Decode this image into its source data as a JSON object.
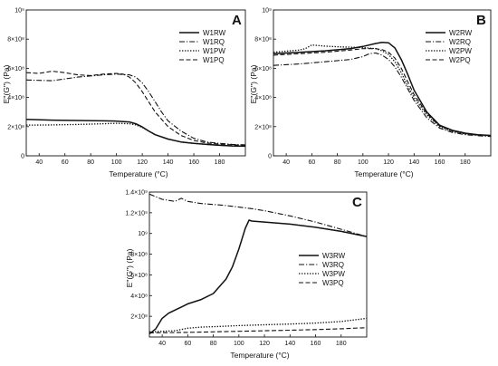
{
  "chart_data": [
    {
      "type": "line",
      "panel": "A",
      "xlabel": "Temperature (°C)",
      "ylabel": "E''(G'') (Pa)",
      "xlim": [
        30,
        200
      ],
      "ylim": [
        0,
        1000000000
      ],
      "xticks": [
        "40",
        "60",
        "80",
        "100",
        "120",
        "140",
        "160",
        "180"
      ],
      "yticks": [
        "0",
        "2×10⁸",
        "4×10⁸",
        "6×10⁸",
        "8×10⁸",
        "10⁹"
      ],
      "legend_position": "top-right",
      "series": [
        {
          "name": "W1RW",
          "style": "solid",
          "x": [
            30,
            50,
            70,
            90,
            100,
            110,
            115,
            120,
            125,
            130,
            140,
            150,
            160,
            170,
            180,
            190,
            200
          ],
          "y": [
            250000000,
            245000000,
            242000000,
            240000000,
            238000000,
            232000000,
            220000000,
            198000000,
            170000000,
            145000000,
            115000000,
            95000000,
            85000000,
            78000000,
            72000000,
            68000000,
            66000000
          ]
        },
        {
          "name": "W1RQ",
          "style": "dashdot",
          "x": [
            30,
            50,
            70,
            90,
            100,
            110,
            115,
            120,
            125,
            130,
            135,
            140,
            150,
            160,
            170,
            180,
            190,
            200
          ],
          "y": [
            520000000,
            515000000,
            540000000,
            555000000,
            560000000,
            555000000,
            540000000,
            500000000,
            440000000,
            370000000,
            300000000,
            240000000,
            170000000,
            120000000,
            95000000,
            85000000,
            78000000,
            75000000
          ]
        },
        {
          "name": "W1PW",
          "style": "dotted",
          "x": [
            30,
            50,
            70,
            90,
            100,
            110,
            115,
            120,
            125,
            130,
            140,
            150,
            160,
            170,
            180,
            190,
            200
          ],
          "y": [
            210000000,
            212000000,
            215000000,
            220000000,
            223000000,
            220000000,
            212000000,
            195000000,
            170000000,
            145000000,
            115000000,
            95000000,
            85000000,
            78000000,
            72000000,
            68000000,
            66000000
          ]
        },
        {
          "name": "W1PQ",
          "style": "dashed",
          "x": [
            30,
            40,
            50,
            60,
            70,
            80,
            90,
            100,
            105,
            110,
            115,
            120,
            125,
            130,
            140,
            150,
            160,
            170,
            180,
            190,
            200
          ],
          "y": [
            570000000,
            565000000,
            580000000,
            570000000,
            555000000,
            550000000,
            560000000,
            565000000,
            560000000,
            540000000,
            500000000,
            440000000,
            370000000,
            300000000,
            200000000,
            140000000,
            105000000,
            88000000,
            80000000,
            75000000,
            72000000
          ]
        }
      ]
    },
    {
      "type": "line",
      "panel": "B",
      "xlabel": "Temperature (°C)",
      "ylabel": "E''(G'') (Pa)",
      "xlim": [
        30,
        200
      ],
      "ylim": [
        0,
        1000000000
      ],
      "xticks": [
        "40",
        "60",
        "80",
        "100",
        "120",
        "140",
        "160",
        "180"
      ],
      "yticks": [
        "0",
        "2×10⁸",
        "4×10⁸",
        "6×10⁸",
        "8×10⁸",
        "10⁹"
      ],
      "legend_position": "top-right",
      "series": [
        {
          "name": "W2RW",
          "style": "solid",
          "x": [
            30,
            50,
            70,
            90,
            100,
            110,
            115,
            120,
            125,
            130,
            135,
            140,
            150,
            160,
            170,
            180,
            190,
            200
          ],
          "y": [
            700000000,
            710000000,
            720000000,
            735000000,
            750000000,
            770000000,
            778000000,
            775000000,
            740000000,
            660000000,
            560000000,
            450000000,
            300000000,
            210000000,
            175000000,
            155000000,
            145000000,
            140000000
          ]
        },
        {
          "name": "W2RQ",
          "style": "dashdot",
          "x": [
            30,
            50,
            70,
            90,
            100,
            105,
            110,
            115,
            120,
            125,
            130,
            135,
            140,
            150,
            160,
            170,
            180,
            190,
            200
          ],
          "y": [
            620000000,
            630000000,
            645000000,
            660000000,
            680000000,
            700000000,
            705000000,
            690000000,
            660000000,
            610000000,
            540000000,
            460000000,
            380000000,
            260000000,
            190000000,
            160000000,
            145000000,
            138000000,
            132000000
          ]
        },
        {
          "name": "W2PW",
          "style": "dotted",
          "x": [
            30,
            50,
            55,
            60,
            70,
            80,
            90,
            100,
            110,
            115,
            120,
            125,
            130,
            135,
            140,
            150,
            160,
            170,
            180,
            190,
            200
          ],
          "y": [
            710000000,
            725000000,
            735000000,
            760000000,
            752000000,
            748000000,
            745000000,
            742000000,
            735000000,
            720000000,
            695000000,
            645000000,
            570000000,
            480000000,
            400000000,
            280000000,
            200000000,
            168000000,
            150000000,
            142000000,
            138000000
          ]
        },
        {
          "name": "W2PQ",
          "style": "dashed",
          "x": [
            30,
            50,
            70,
            90,
            100,
            110,
            115,
            120,
            125,
            130,
            135,
            140,
            150,
            160,
            170,
            180,
            190,
            200
          ],
          "y": [
            690000000,
            700000000,
            710000000,
            725000000,
            735000000,
            735000000,
            728000000,
            710000000,
            670000000,
            600000000,
            510000000,
            420000000,
            290000000,
            205000000,
            170000000,
            152000000,
            144000000,
            140000000
          ]
        }
      ]
    },
    {
      "type": "line",
      "panel": "C",
      "xlabel": "Temperature (°C)",
      "ylabel": "E''(G'') (Pa)",
      "xlim": [
        30,
        200
      ],
      "ylim": [
        0,
        1400000000
      ],
      "xticks": [
        "40",
        "60",
        "80",
        "100",
        "120",
        "140",
        "160",
        "180"
      ],
      "yticks": [
        "2×10⁸",
        "4×10⁸",
        "6×10⁸",
        "8×10⁸",
        "10⁹",
        "1.2×10⁹",
        "1.4×10⁹"
      ],
      "legend_position": "right",
      "series": [
        {
          "name": "W3RW",
          "style": "solid",
          "x": [
            30,
            35,
            40,
            45,
            50,
            55,
            60,
            70,
            80,
            90,
            95,
            100,
            105,
            108,
            110,
            120,
            140,
            160,
            180,
            200
          ],
          "y": [
            30000000,
            80000000,
            180000000,
            230000000,
            260000000,
            290000000,
            320000000,
            360000000,
            420000000,
            560000000,
            680000000,
            850000000,
            1050000000,
            1130000000,
            1120000000,
            1110000000,
            1090000000,
            1060000000,
            1020000000,
            970000000
          ]
        },
        {
          "name": "W3RQ",
          "style": "dashdot",
          "x": [
            30,
            40,
            50,
            55,
            60,
            70,
            80,
            90,
            100,
            110,
            120,
            140,
            160,
            180,
            200
          ],
          "y": [
            1380000000,
            1330000000,
            1310000000,
            1340000000,
            1310000000,
            1290000000,
            1280000000,
            1270000000,
            1255000000,
            1240000000,
            1220000000,
            1170000000,
            1110000000,
            1040000000,
            970000000
          ]
        },
        {
          "name": "W3PW",
          "style": "dotted",
          "x": [
            30,
            50,
            60,
            70,
            80,
            100,
            120,
            140,
            160,
            180,
            200
          ],
          "y": [
            50000000,
            60000000,
            85000000,
            95000000,
            100000000,
            110000000,
            118000000,
            125000000,
            135000000,
            150000000,
            180000000
          ]
        },
        {
          "name": "W3PQ",
          "style": "dashed",
          "x": [
            30,
            60,
            80,
            100,
            120,
            140,
            160,
            180,
            200
          ],
          "y": [
            40000000,
            45000000,
            50000000,
            55000000,
            60000000,
            66000000,
            72000000,
            80000000,
            90000000
          ]
        }
      ]
    }
  ]
}
